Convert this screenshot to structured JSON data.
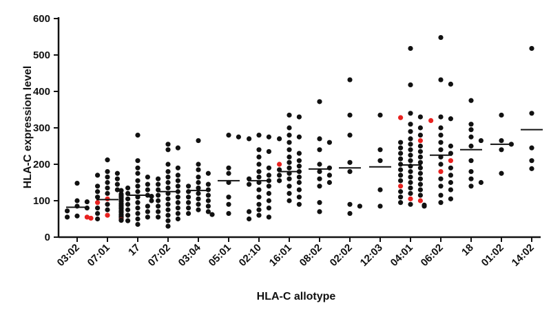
{
  "chart_data": {
    "type": "scatter",
    "xlabel": "HLA-C allotype",
    "ylabel": "HLA-C expression level",
    "ylim": [
      0,
      600
    ],
    "yticks": [
      0,
      100,
      200,
      300,
      400,
      500,
      600
    ],
    "categories": [
      "03:02",
      "07:01",
      "17",
      "07:02",
      "03:04",
      "05:01",
      "02:10",
      "16:01",
      "08:02",
      "02:02",
      "12:03",
      "04:01",
      "06:02",
      "18",
      "01:02",
      "14:02"
    ],
    "colors": {
      "default": "#111111",
      "highlight": "#e8211f"
    },
    "series": [
      {
        "category": "03:02",
        "mean": 82,
        "points": [
          148,
          100,
          97,
          85,
          80,
          72,
          58,
          55,
          52,
          55
        ],
        "highlight": [
          55,
          52
        ]
      },
      {
        "category": "07:01",
        "mean": 103,
        "points": [
          212,
          180,
          175,
          170,
          165,
          160,
          150,
          145,
          140,
          135,
          130,
          128,
          125,
          120,
          118,
          115,
          112,
          110,
          108,
          105,
          103,
          100,
          98,
          95,
          92,
          90,
          88,
          85,
          82,
          80,
          78,
          75,
          72,
          70,
          68,
          65,
          62,
          60,
          58,
          55,
          52,
          50,
          48,
          47,
          46
        ],
        "highlight": [
          48,
          60,
          105,
          95
        ]
      },
      {
        "category": "17",
        "mean": 115,
        "points": [
          280,
          210,
          190,
          175,
          165,
          155,
          145,
          140,
          135,
          130,
          125,
          120,
          115,
          112,
          110,
          105,
          100,
          95,
          90,
          85,
          80,
          75,
          70,
          65,
          60,
          55,
          50,
          45,
          35
        ],
        "highlight": []
      },
      {
        "category": "07:02",
        "mean": 125,
        "points": [
          255,
          245,
          240,
          200,
          190,
          180,
          170,
          165,
          160,
          155,
          150,
          145,
          140,
          135,
          130,
          125,
          120,
          115,
          110,
          105,
          100,
          95,
          90,
          85,
          80,
          75,
          70,
          65,
          60,
          55,
          50,
          45,
          30
        ],
        "highlight": []
      },
      {
        "category": "03:04",
        "mean": 128,
        "points": [
          265,
          200,
          185,
          175,
          165,
          150,
          145,
          140,
          135,
          130,
          125,
          120,
          115,
          110,
          105,
          100,
          95,
          90,
          85,
          80,
          75,
          70,
          65,
          62
        ],
        "highlight": []
      },
      {
        "category": "05:01",
        "mean": 155,
        "points": [
          280,
          275,
          190,
          175,
          150,
          110,
          90,
          65
        ],
        "highlight": []
      },
      {
        "category": "02:10",
        "mean": 155,
        "points": [
          280,
          275,
          270,
          240,
          235,
          220,
          200,
          190,
          180,
          170,
          165,
          160,
          155,
          150,
          145,
          140,
          130,
          120,
          110,
          100,
          90,
          80,
          75,
          70,
          60,
          55,
          50
        ],
        "highlight": [
          72,
          72
        ]
      },
      {
        "category": "16:01",
        "mean": 180,
        "points": [
          335,
          330,
          300,
          280,
          275,
          270,
          260,
          240,
          230,
          220,
          210,
          205,
          200,
          195,
          190,
          185,
          180,
          175,
          170,
          165,
          160,
          155,
          150,
          140,
          130,
          120,
          110,
          100,
          90
        ],
        "highlight": [
          200
        ]
      },
      {
        "category": "08:02",
        "mean": 187,
        "points": [
          372,
          270,
          260,
          240,
          200,
          190,
          180,
          170,
          160,
          150,
          140,
          95,
          70
        ],
        "highlight": []
      },
      {
        "category": "02:02",
        "mean": 190,
        "points": [
          432,
          335,
          280,
          205,
          180,
          90,
          85,
          65
        ],
        "highlight": []
      },
      {
        "category": "12:03",
        "mean": 193,
        "points": [
          335,
          240,
          210,
          130,
          85
        ],
        "highlight": []
      },
      {
        "category": "04:01",
        "mean": 198,
        "points": [
          518,
          418,
          340,
          330,
          328,
          310,
          300,
          290,
          280,
          270,
          265,
          260,
          255,
          250,
          245,
          240,
          235,
          230,
          225,
          220,
          215,
          210,
          205,
          200,
          195,
          190,
          185,
          180,
          175,
          170,
          165,
          160,
          155,
          150,
          145,
          140,
          135,
          130,
          125,
          120,
          115,
          110,
          105,
          100,
          95,
          90,
          88,
          85
        ],
        "highlight": [
          328,
          325,
          265,
          140,
          105,
          100
        ]
      },
      {
        "category": "06:02",
        "mean": 225,
        "points": [
          548,
          432,
          420,
          330,
          325,
          320,
          300,
          280,
          260,
          250,
          240,
          230,
          220,
          210,
          200,
          190,
          180,
          170,
          160,
          150,
          140,
          130,
          115,
          105,
          95
        ],
        "highlight": [
          322,
          320,
          215,
          210,
          180
        ]
      },
      {
        "category": "18",
        "mean": 240,
        "points": [
          375,
          310,
          295,
          275,
          265,
          250,
          210,
          180,
          160,
          150,
          140
        ],
        "highlight": []
      },
      {
        "category": "01:02",
        "mean": 255,
        "points": [
          335,
          265,
          255,
          240,
          175
        ],
        "highlight": []
      },
      {
        "category": "14:02",
        "mean": 295,
        "points": [
          518,
          340,
          245,
          210,
          188
        ],
        "highlight": []
      }
    ]
  }
}
